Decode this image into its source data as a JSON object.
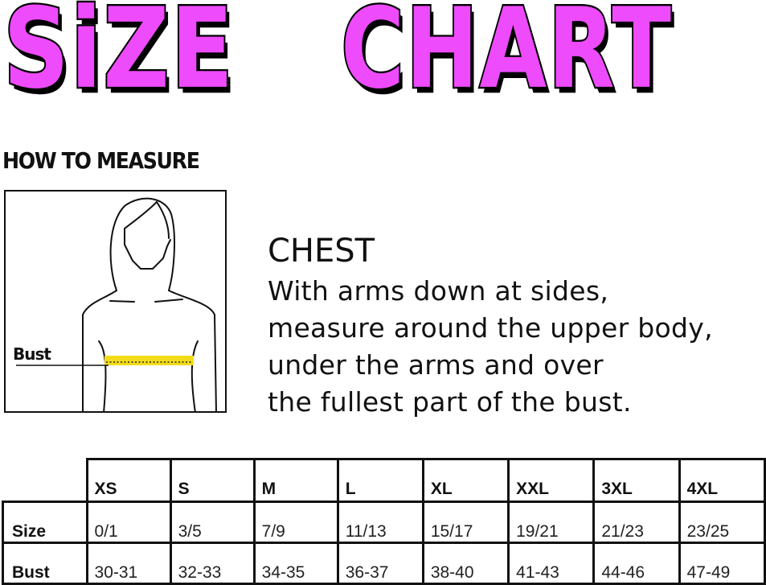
{
  "title": {
    "word1": "SiZE",
    "word2": "CHART",
    "fill_color": "#ee4bfc"
  },
  "section_heading": "HOW TO MEASURE",
  "figure": {
    "label": "Bust",
    "tape_color": "#f2dc1a"
  },
  "chest": {
    "heading": "CHEST",
    "lines": [
      "With arms down at sides,",
      "measure around the upper body,",
      "under the arms and over",
      "the fullest part of the bust."
    ]
  },
  "table": {
    "headers": [
      "XS",
      "S",
      "M",
      "L",
      "XL",
      "XXL",
      "3XL",
      "4XL"
    ],
    "rows": [
      {
        "label": "Size",
        "values": [
          "0/1",
          "3/5",
          "7/9",
          "11/13",
          "15/17",
          "19/21",
          "21/23",
          "23/25"
        ]
      },
      {
        "label": "Bust",
        "values": [
          "30-31",
          "32-33",
          "34-35",
          "36-37",
          "38-40",
          "41-43",
          "44-46",
          "47-49"
        ]
      }
    ]
  }
}
